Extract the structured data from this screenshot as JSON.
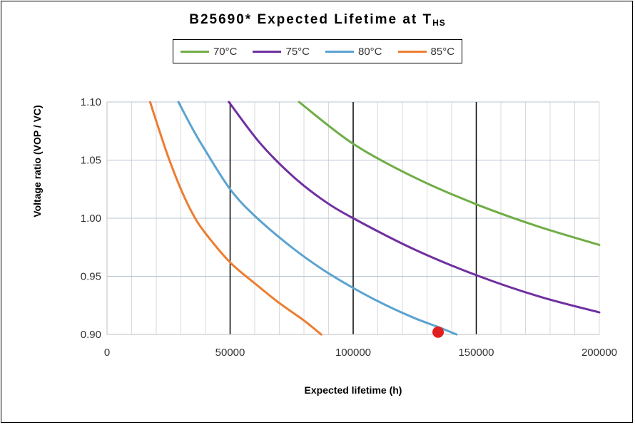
{
  "chart_data": {
    "type": "line",
    "title": "B25690* Expected Lifetime at T",
    "title_subscript": "HS",
    "xlabel": "Expected lifetime  (h)",
    "ylabel": "Voltage ratio (VOP / VC)",
    "xlim": [
      0,
      200000
    ],
    "ylim": [
      0.9,
      1.1
    ],
    "x_ticks": [
      "0",
      "50000",
      "100000",
      "150000",
      "200000"
    ],
    "y_ticks": [
      "0.90",
      "0.95",
      "1.00",
      "1.05",
      "1.10"
    ],
    "grid": true,
    "legend_position": "top",
    "series": [
      {
        "name": "70°C",
        "color": "#70ad47",
        "points": [
          [
            78000,
            1.1
          ],
          [
            100000,
            1.064
          ],
          [
            125000,
            1.035
          ],
          [
            150000,
            1.012
          ],
          [
            175000,
            0.993
          ],
          [
            200000,
            0.977
          ]
        ]
      },
      {
        "name": "75°C",
        "color": "#7030a0",
        "points": [
          [
            49500,
            1.1
          ],
          [
            62000,
            1.065
          ],
          [
            75000,
            1.037
          ],
          [
            87500,
            1.016
          ],
          [
            100000,
            1.0
          ],
          [
            125000,
            0.973
          ],
          [
            150000,
            0.951
          ],
          [
            175000,
            0.933
          ],
          [
            200000,
            0.919
          ]
        ]
      },
      {
        "name": "80°C",
        "color": "#5ba3d0",
        "points": [
          [
            29000,
            1.1
          ],
          [
            35000,
            1.076
          ],
          [
            40000,
            1.058
          ],
          [
            50000,
            1.025
          ],
          [
            60000,
            1.002
          ],
          [
            75000,
            0.975
          ],
          [
            87500,
            0.956
          ],
          [
            100000,
            0.94
          ],
          [
            112500,
            0.926
          ],
          [
            125000,
            0.914
          ],
          [
            135000,
            0.906
          ],
          [
            142000,
            0.9
          ]
        ]
      },
      {
        "name": "85°C",
        "color": "#ed7d31",
        "points": [
          [
            17500,
            1.1
          ],
          [
            21000,
            1.077
          ],
          [
            25000,
            1.052
          ],
          [
            30000,
            1.025
          ],
          [
            35000,
            1.003
          ],
          [
            40000,
            0.987
          ],
          [
            50000,
            0.962
          ],
          [
            60000,
            0.944
          ],
          [
            70000,
            0.927
          ],
          [
            80000,
            0.912
          ],
          [
            87000,
            0.9
          ]
        ]
      }
    ],
    "marker": {
      "x": 134500,
      "y": 0.902,
      "color": "#e02020"
    }
  }
}
